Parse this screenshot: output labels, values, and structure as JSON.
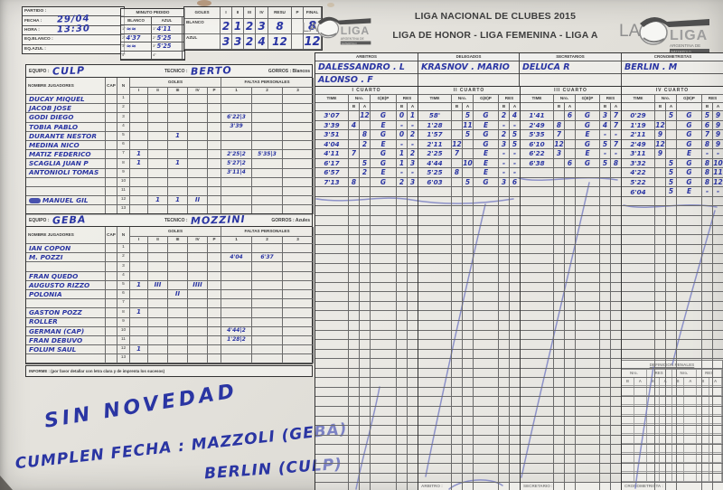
{
  "ink_color": "#2a35a3",
  "partido": {
    "rows": [
      {
        "label": "PARTIDO :",
        "value": ""
      },
      {
        "label": "FECHA :",
        "value": "29/04"
      },
      {
        "label": "HORA :",
        "value": "13:30"
      },
      {
        "label": "EQ.BLANCO :",
        "value": ""
      },
      {
        "label": "EQ.AZUL :",
        "value": ""
      }
    ]
  },
  "minuto_pedido": {
    "title": "MINUTO PEDIDO",
    "columns": [
      "BLANCO",
      "AZUL"
    ],
    "rows": [
      {
        "n": "1°",
        "blanco": "≈≈",
        "azul": "4'11"
      },
      {
        "n": "2°",
        "blanco": "4'37",
        "azul": "5'25"
      },
      {
        "n": "3°",
        "blanco": "≈≈",
        "azul": "5'25"
      },
      {
        "n": "4°",
        "blanco": "",
        "azul": ""
      }
    ]
  },
  "goles_resumen": {
    "header": [
      "GOLES",
      "I",
      "II",
      "III",
      "IV",
      "RESU",
      "P",
      "FINAL"
    ],
    "rows": [
      {
        "label": "BLANCO",
        "i": "2",
        "ii": "1",
        "iii": "2",
        "iv": "3",
        "resu": "8",
        "p": "",
        "final": "8"
      },
      {
        "label": "AZUL",
        "i": "3",
        "ii": "3",
        "iii": "2",
        "iv": "4",
        "resu": "12",
        "p": "",
        "final": "12"
      }
    ]
  },
  "liga_logo": {
    "la": "LA",
    "liga": "LIGA",
    "sub1": "ARGENTINA DE",
    "sub2": "WATERPOLO"
  },
  "titles": {
    "line1": "LIGA NACIONAL DE CLUBES 2015",
    "line2": "LIGA DE HONOR - LIGA FEMENINA - LIGA A"
  },
  "officials": [
    {
      "label": "ARBITROS",
      "names": [
        "DALESSANDRO . L",
        "ALONSO . F"
      ]
    },
    {
      "label": "DELEGADOS",
      "names": [
        "KRASNOV . MARIO",
        ""
      ]
    },
    {
      "label": "SECRETARIOS",
      "names": [
        "DELUCA  R",
        ""
      ]
    },
    {
      "label": "CRONOMETRISTAS",
      "names": [
        "BERLIN . M",
        ""
      ]
    }
  ],
  "roster_header": {
    "nombre": "NOMBRE JUGADORES",
    "cap": "CAP",
    "n": "N",
    "goles": "GOLES",
    "goles_cols": [
      "I",
      "II",
      "III",
      "IV",
      "P"
    ],
    "faltas": "FALTAS PERSONALES",
    "faltas_cols": [
      "1",
      "2",
      "3"
    ]
  },
  "teams": [
    {
      "equipo_label": "EQUIPO :",
      "equipo": "CULP",
      "tecnico_label": "TECNICO :",
      "tecnico": "BERTO",
      "gorros_label": "GORROS : Blancos",
      "players": [
        {
          "n": "1",
          "cap": "",
          "name": "DUCAY MIQUEL",
          "goles": [
            "",
            "",
            "",
            "",
            ""
          ],
          "faltas": [
            "",
            "",
            ""
          ]
        },
        {
          "n": "2",
          "cap": "",
          "name": "JACOB JOSE",
          "goles": [
            "",
            "",
            "",
            "",
            ""
          ],
          "faltas": [
            "",
            "",
            ""
          ]
        },
        {
          "n": "3",
          "cap": "",
          "name": "GODI DIEGO",
          "goles": [
            "",
            "",
            "",
            "",
            ""
          ],
          "faltas": [
            "6'22|3",
            "",
            ""
          ]
        },
        {
          "n": "4",
          "cap": "",
          "name": "TOBIA PABLO",
          "goles": [
            "",
            "",
            "",
            "",
            ""
          ],
          "faltas": [
            "3'39",
            "",
            ""
          ]
        },
        {
          "n": "5",
          "cap": "",
          "name": "DURANTE NESTOR",
          "goles": [
            "",
            "",
            "1",
            "",
            ""
          ],
          "faltas": [
            "",
            "",
            ""
          ]
        },
        {
          "n": "6",
          "cap": "",
          "name": "MEDINA NICO",
          "goles": [
            "",
            "",
            "",
            "",
            ""
          ],
          "faltas": [
            "",
            "",
            ""
          ]
        },
        {
          "n": "7",
          "cap": "",
          "name": "MATIZ FEDERICO",
          "goles": [
            "1",
            "",
            "",
            "",
            ""
          ],
          "faltas": [
            "2'25|2",
            "5'35|3",
            ""
          ]
        },
        {
          "n": "8",
          "cap": "",
          "name": "SCAGLIA JUAN P",
          "goles": [
            "1",
            "",
            "1",
            "",
            ""
          ],
          "faltas": [
            "5'27|2",
            "",
            ""
          ]
        },
        {
          "n": "9",
          "cap": "",
          "name": "ANTONIOLI TOMAS",
          "goles": [
            "",
            "",
            "",
            "",
            ""
          ],
          "faltas": [
            "3'11|4",
            "",
            ""
          ]
        },
        {
          "n": "10",
          "cap": "",
          "name": "",
          "goles": [
            "",
            "",
            "",
            "",
            ""
          ],
          "faltas": [
            "",
            "",
            ""
          ]
        },
        {
          "n": "11",
          "cap": "",
          "name": "",
          "goles": [
            "",
            "",
            "",
            "",
            ""
          ],
          "faltas": [
            "",
            "",
            ""
          ]
        },
        {
          "n": "12",
          "cap": "",
          "name": "MANUEL GIL",
          "scribble": true,
          "goles": [
            "",
            "1",
            "1",
            "II",
            ""
          ],
          "faltas": [
            "",
            "",
            ""
          ]
        },
        {
          "n": "13",
          "cap": "",
          "name": "",
          "goles": [
            "",
            "",
            "",
            "",
            ""
          ],
          "faltas": [
            "",
            "",
            ""
          ]
        }
      ]
    },
    {
      "equipo_label": "EQUIPO :",
      "equipo": "GEBA",
      "tecnico_label": "TECNICO :",
      "tecnico": "MOZZINI",
      "gorros_label": "GORROS : Azules",
      "players": [
        {
          "n": "1",
          "cap": "",
          "name": "IAN COPON",
          "goles": [
            "",
            "",
            "",
            "",
            ""
          ],
          "faltas": [
            "",
            "",
            ""
          ]
        },
        {
          "n": "2",
          "cap": "",
          "name": "M. POZZI",
          "goles": [
            "",
            "",
            "",
            "",
            ""
          ],
          "faltas": [
            "4'04",
            "6'37",
            ""
          ]
        },
        {
          "n": "3",
          "cap": "",
          "name": "",
          "goles": [
            "",
            "",
            "",
            "",
            ""
          ],
          "faltas": [
            "",
            "",
            ""
          ]
        },
        {
          "n": "4",
          "cap": "",
          "name": "FRAN QUEDO",
          "goles": [
            "",
            "",
            "",
            "",
            ""
          ],
          "faltas": [
            "",
            "",
            ""
          ]
        },
        {
          "n": "5",
          "cap": "",
          "name": "AUGUSTO RIZZO",
          "goles": [
            "1",
            "III",
            "",
            "IIII",
            ""
          ],
          "faltas": [
            "",
            "",
            ""
          ]
        },
        {
          "n": "6",
          "cap": "",
          "name": "POLONIA",
          "goles": [
            "",
            "",
            "II",
            "",
            ""
          ],
          "faltas": [
            "",
            "",
            ""
          ]
        },
        {
          "n": "7",
          "cap": "",
          "name": "",
          "goles": [
            "",
            "",
            "",
            "",
            ""
          ],
          "faltas": [
            "",
            "",
            ""
          ]
        },
        {
          "n": "8",
          "cap": "",
          "name": "GASTON POZZ",
          "goles": [
            "1",
            "",
            "",
            "",
            ""
          ],
          "faltas": [
            "",
            "",
            ""
          ]
        },
        {
          "n": "9",
          "cap": "",
          "name": "ROLLER",
          "goles": [
            "",
            "",
            "",
            "",
            ""
          ],
          "faltas": [
            "",
            "",
            ""
          ]
        },
        {
          "n": "10",
          "cap": "",
          "name": "GERMAN (CAP)",
          "goles": [
            "",
            "",
            "",
            "",
            ""
          ],
          "faltas": [
            "4'44|2",
            "",
            ""
          ]
        },
        {
          "n": "11",
          "cap": "",
          "name": "FRAN DEBUVO",
          "goles": [
            "",
            "",
            "",
            "",
            ""
          ],
          "faltas": [
            "1'28|2",
            "",
            ""
          ]
        },
        {
          "n": "12",
          "cap": "",
          "name": "FOLUM SAUL",
          "goles": [
            "1",
            "",
            "",
            "",
            ""
          ],
          "faltas": [
            "",
            "",
            ""
          ]
        },
        {
          "n": "13",
          "cap": "",
          "name": "",
          "goles": [
            "",
            "",
            "",
            "",
            ""
          ],
          "faltas": [
            "",
            "",
            ""
          ]
        }
      ]
    }
  ],
  "informe_label": "INFORME : (por favor detallar con letra clara y de imprenta los sucesos)",
  "notes": {
    "line1": "SIN NOVEDAD",
    "line2": "CUMPLEN FECHA : MAZZOLI (GEBA)",
    "line3": "BERLIN (CULP)"
  },
  "quarters_header": {
    "time": "TIME",
    "nro": "Nro.",
    "gep": "G)E)P",
    "res": "RES",
    "b": "B",
    "a": "A"
  },
  "quarters": [
    {
      "title": "I CUARTO",
      "events": [
        {
          "time": "3'07",
          "b": "",
          "a": "12",
          "gep": "G",
          "rb": "0",
          "ra": "1"
        },
        {
          "time": "3'39",
          "b": "4",
          "a": "",
          "gep": "E",
          "rb": "-",
          "ra": "-"
        },
        {
          "time": "3'51",
          "b": "",
          "a": "8",
          "gep": "G",
          "rb": "0",
          "ra": "2"
        },
        {
          "time": "4'04",
          "b": "",
          "a": "2",
          "gep": "E",
          "rb": "-",
          "ra": "-"
        },
        {
          "time": "4'11",
          "b": "7",
          "a": "",
          "gep": "G",
          "rb": "1",
          "ra": "2"
        },
        {
          "time": "6'17",
          "b": "",
          "a": "5",
          "gep": "G",
          "rb": "1",
          "ra": "3"
        },
        {
          "time": "6'57",
          "b": "",
          "a": "2",
          "gep": "E",
          "rb": "-",
          "ra": "-"
        },
        {
          "time": "7'13",
          "b": "8",
          "a": "",
          "gep": "G",
          "rb": "2",
          "ra": "3"
        }
      ]
    },
    {
      "title": "II CUARTO",
      "events": [
        {
          "time": "58'",
          "b": "",
          "a": "5",
          "gep": "G",
          "rb": "2",
          "ra": "4"
        },
        {
          "time": "1'28",
          "b": "",
          "a": "11",
          "gep": "E",
          "rb": "-",
          "ra": "-"
        },
        {
          "time": "1'57",
          "b": "",
          "a": "5",
          "gep": "G",
          "rb": "2",
          "ra": "5"
        },
        {
          "time": "2'11",
          "b": "12",
          "a": "",
          "gep": "G",
          "rb": "3",
          "ra": "5"
        },
        {
          "time": "2'25",
          "b": "7",
          "a": "",
          "gep": "E",
          "rb": "-",
          "ra": "-"
        },
        {
          "time": "4'44",
          "b": "",
          "a": "10",
          "gep": "E",
          "rb": "-",
          "ra": "-"
        },
        {
          "time": "5'25",
          "b": "8",
          "a": "",
          "gep": "E",
          "rb": "-",
          "ra": "-"
        },
        {
          "time": "6'03",
          "b": "",
          "a": "5",
          "gep": "G",
          "rb": "3",
          "ra": "6"
        }
      ]
    },
    {
      "title": "III CUARTO",
      "events": [
        {
          "time": "1'41",
          "b": "",
          "a": "6",
          "gep": "G",
          "rb": "3",
          "ra": "7"
        },
        {
          "time": "2'49",
          "b": "8",
          "a": "",
          "gep": "G",
          "rb": "4",
          "ra": "7"
        },
        {
          "time": "5'35",
          "b": "7",
          "a": "",
          "gep": "E",
          "rb": "-",
          "ra": "-"
        },
        {
          "time": "6'10",
          "b": "12",
          "a": "",
          "gep": "G",
          "rb": "5",
          "ra": "7"
        },
        {
          "time": "6'22",
          "b": "3",
          "a": "",
          "gep": "E",
          "rb": "-",
          "ra": "-"
        },
        {
          "time": "6'38",
          "b": "",
          "a": "6",
          "gep": "G",
          "rb": "5",
          "ra": "8"
        }
      ]
    },
    {
      "title": "IV CUARTO",
      "events": [
        {
          "time": "0'29",
          "b": "",
          "a": "5",
          "gep": "G",
          "rb": "5",
          "ra": "9"
        },
        {
          "time": "1'19",
          "b": "12",
          "a": "",
          "gep": "G",
          "rb": "6",
          "ra": "9"
        },
        {
          "time": "2'11",
          "b": "9",
          "a": "",
          "gep": "G",
          "rb": "7",
          "ra": "9"
        },
        {
          "time": "2'49",
          "b": "12",
          "a": "",
          "gep": "G",
          "rb": "8",
          "ra": "9"
        },
        {
          "time": "3'11",
          "b": "9",
          "a": "",
          "gep": "E",
          "rb": "-",
          "ra": "-"
        },
        {
          "time": "3'32",
          "b": "",
          "a": "5",
          "gep": "G",
          "rb": "8",
          "ra": "10"
        },
        {
          "time": "4'22",
          "b": "",
          "a": "5",
          "gep": "G",
          "rb": "8",
          "ra": "11"
        },
        {
          "time": "5'22",
          "b": "",
          "a": "5",
          "gep": "G",
          "rb": "8",
          "ra": "12"
        },
        {
          "time": "6'04",
          "b": "",
          "a": "5",
          "gep": "E",
          "rb": "-",
          "ra": "-"
        }
      ]
    }
  ],
  "penales": {
    "title": "DEFINICION PENALES",
    "cols": [
      "Nro.",
      "RES",
      "Nro.",
      "RES"
    ],
    "b": "B",
    "a": "A"
  },
  "footer_labels": [
    "ARBITRO :",
    "SECRETARIO :",
    "CRONOMETRISTA :"
  ]
}
